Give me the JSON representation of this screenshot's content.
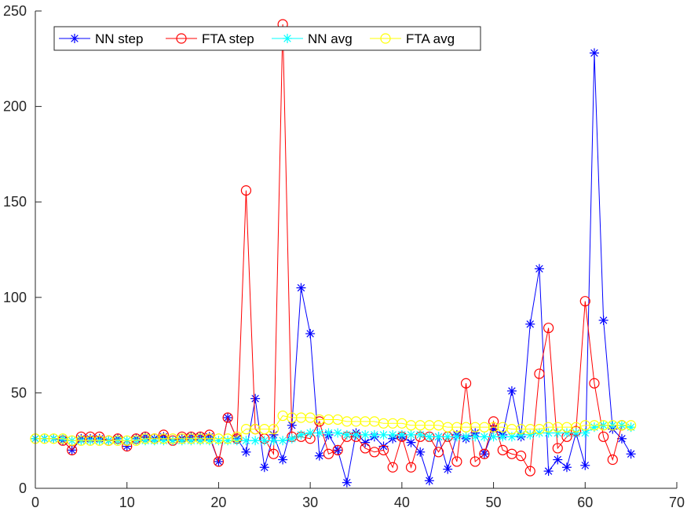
{
  "chart_data": {
    "type": "line",
    "title": "",
    "xlabel": "",
    "ylabel": "",
    "xlim": [
      0,
      70
    ],
    "ylim": [
      0,
      250
    ],
    "xticks": [
      0,
      10,
      20,
      30,
      40,
      50,
      60,
      70
    ],
    "yticks": [
      0,
      50,
      100,
      150,
      200,
      250
    ],
    "legend_position": "top-left",
    "grid": false,
    "series": [
      {
        "name": "NN step",
        "color": "#0000ff",
        "marker": "asterisk",
        "x": [
          0,
          1,
          2,
          3,
          4,
          5,
          6,
          7,
          8,
          9,
          10,
          11,
          12,
          13,
          14,
          15,
          16,
          17,
          18,
          19,
          20,
          21,
          22,
          23,
          24,
          25,
          26,
          27,
          28,
          29,
          30,
          31,
          32,
          33,
          34,
          35,
          36,
          37,
          38,
          39,
          40,
          41,
          42,
          43,
          44,
          45,
          46,
          47,
          48,
          49,
          50,
          51,
          52,
          53,
          54,
          55,
          56,
          57,
          58,
          59,
          60,
          61,
          62,
          63,
          64,
          65
        ],
        "y": [
          26,
          26,
          26,
          25,
          20,
          26,
          26,
          26,
          25,
          26,
          22,
          26,
          27,
          26,
          27,
          25,
          26,
          27,
          27,
          27,
          14,
          37,
          26,
          19,
          47,
          11,
          28,
          15,
          33,
          105,
          81,
          17,
          28,
          20,
          3,
          29,
          24,
          27,
          22,
          26,
          27,
          24,
          19,
          4,
          27,
          10,
          28,
          26,
          29,
          18,
          31,
          28,
          51,
          27,
          86,
          115,
          9,
          15,
          11,
          29,
          12,
          228,
          88,
          31,
          26,
          18
        ]
      },
      {
        "name": "FTA step",
        "color": "#ff0000",
        "marker": "circle",
        "x": [
          3,
          4,
          5,
          6,
          7,
          8,
          9,
          10,
          11,
          12,
          13,
          14,
          15,
          16,
          17,
          18,
          19,
          20,
          21,
          22,
          23,
          24,
          25,
          26,
          27,
          28,
          29,
          30,
          31,
          32,
          33,
          34,
          35,
          36,
          37,
          38,
          39,
          40,
          41,
          42,
          43,
          44,
          45,
          46,
          47,
          48,
          49,
          50,
          51,
          52,
          53,
          54,
          55,
          56,
          57,
          58,
          59,
          60,
          61,
          62,
          63,
          64
        ],
        "y": [
          25,
          20,
          27,
          27,
          27,
          25,
          26,
          22,
          26,
          27,
          26,
          28,
          25,
          27,
          27,
          27,
          28,
          14,
          37,
          26,
          156,
          31,
          26,
          18,
          243,
          27,
          27,
          26,
          35,
          18,
          20,
          27,
          27,
          21,
          19,
          20,
          11,
          27,
          11,
          27,
          27,
          19,
          27,
          14,
          55,
          14,
          18,
          35,
          20,
          18,
          17,
          9,
          60,
          84,
          21,
          27,
          30,
          98,
          55,
          27,
          15,
          33
        ]
      },
      {
        "name": "NN avg",
        "color": "#00ffff",
        "marker": "asterisk",
        "x": [
          0,
          1,
          2,
          3,
          4,
          5,
          6,
          7,
          8,
          9,
          10,
          11,
          12,
          13,
          14,
          15,
          16,
          17,
          18,
          19,
          20,
          21,
          22,
          23,
          24,
          25,
          26,
          27,
          28,
          29,
          30,
          31,
          32,
          33,
          34,
          35,
          36,
          37,
          38,
          39,
          40,
          41,
          42,
          43,
          44,
          45,
          46,
          47,
          48,
          49,
          50,
          51,
          52,
          53,
          54,
          55,
          56,
          57,
          58,
          59,
          60,
          61,
          62,
          63,
          64,
          65
        ],
        "y": [
          26,
          26,
          26,
          26,
          25,
          25,
          25,
          25,
          25,
          25,
          25,
          25,
          25,
          25,
          25,
          25,
          25,
          25,
          25,
          25,
          25,
          25,
          25,
          25,
          25,
          25,
          25,
          25,
          26,
          28,
          29,
          29,
          29,
          29,
          28,
          28,
          28,
          28,
          28,
          28,
          28,
          28,
          28,
          27,
          27,
          27,
          27,
          27,
          27,
          27,
          27,
          27,
          27,
          28,
          28,
          29,
          29,
          29,
          29,
          29,
          29,
          32,
          33,
          33,
          33,
          32
        ]
      },
      {
        "name": "FTA avg",
        "color": "#ffff00",
        "marker": "circle",
        "x": [
          0,
          1,
          2,
          3,
          4,
          5,
          6,
          7,
          8,
          9,
          10,
          11,
          12,
          13,
          14,
          15,
          16,
          17,
          18,
          19,
          20,
          21,
          22,
          23,
          24,
          25,
          26,
          27,
          28,
          29,
          30,
          31,
          32,
          33,
          34,
          35,
          36,
          37,
          38,
          39,
          40,
          41,
          42,
          43,
          44,
          45,
          46,
          47,
          48,
          49,
          50,
          51,
          52,
          53,
          54,
          55,
          56,
          57,
          58,
          59,
          60,
          61,
          62,
          63,
          64,
          65
        ],
        "y": [
          26,
          26,
          26,
          26,
          25,
          25,
          25,
          25,
          25,
          25,
          25,
          25,
          26,
          26,
          26,
          26,
          26,
          26,
          26,
          26,
          26,
          26,
          27,
          31,
          31,
          31,
          31,
          38,
          37,
          37,
          37,
          36,
          36,
          36,
          35,
          35,
          35,
          35,
          34,
          34,
          34,
          33,
          33,
          33,
          33,
          32,
          32,
          32,
          32,
          32,
          32,
          32,
          31,
          31,
          31,
          31,
          32,
          32,
          32,
          32,
          33,
          33,
          33,
          33,
          33,
          33
        ]
      }
    ]
  }
}
